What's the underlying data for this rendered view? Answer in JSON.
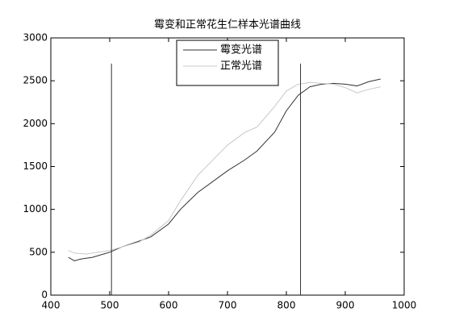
{
  "chart_data": {
    "type": "line",
    "title": "霉变和正常花生仁样本光谱曲线",
    "x": [
      430,
      440,
      450,
      460,
      470,
      480,
      500,
      520,
      550,
      570,
      600,
      620,
      650,
      700,
      730,
      750,
      780,
      800,
      820,
      840,
      860,
      880,
      900,
      920,
      940,
      960
    ],
    "series": [
      {
        "name": "霉变光谱",
        "color": "#333333",
        "values": [
          440,
          400,
          420,
          430,
          440,
          460,
          500,
          560,
          630,
          680,
          830,
          1000,
          1200,
          1450,
          1580,
          1680,
          1900,
          2150,
          2330,
          2430,
          2460,
          2470,
          2460,
          2440,
          2490,
          2520
        ]
      },
      {
        "name": "正常光谱",
        "color": "#c8c8c8",
        "values": [
          520,
          490,
          485,
          480,
          490,
          500,
          520,
          560,
          620,
          700,
          870,
          1100,
          1400,
          1750,
          1900,
          1960,
          2200,
          2380,
          2460,
          2480,
          2470,
          2460,
          2420,
          2360,
          2400,
          2430
        ]
      }
    ],
    "vlines": [
      {
        "x": 503,
        "y": [
          0,
          2700
        ]
      },
      {
        "x": 824,
        "y": [
          0,
          2700
        ]
      }
    ],
    "xlim": [
      400,
      1000
    ],
    "xticks": [
      400,
      500,
      600,
      700,
      800,
      900,
      1000
    ],
    "ylim": [
      0,
      3000
    ],
    "yticks": [
      0,
      500,
      1000,
      1500,
      2000,
      2500,
      3000
    ],
    "grid": false,
    "legend": "north"
  }
}
